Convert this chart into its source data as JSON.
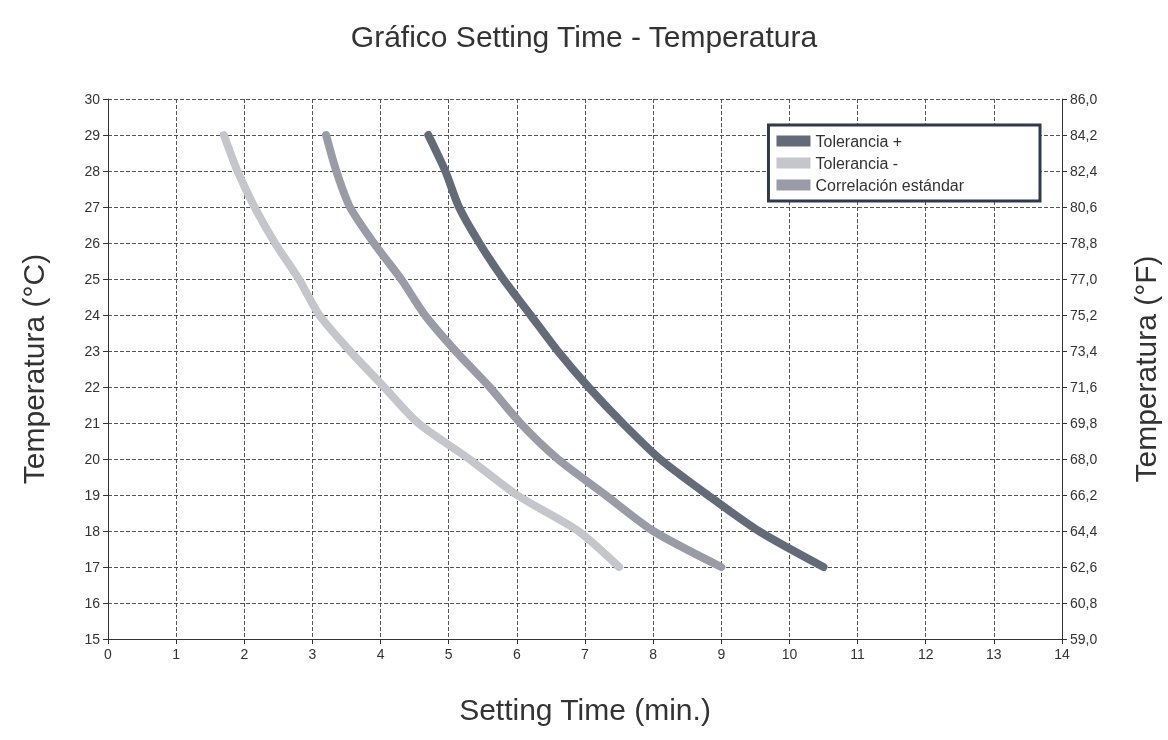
{
  "chart_data": {
    "type": "line",
    "title": "Gráfico Setting Time - Temperatura",
    "xlabel": "Setting Time (min.)",
    "ylabel": "Temperatura (°C)",
    "y2label": "Temperatura (°F)",
    "xlim": [
      0,
      14
    ],
    "xticks": [
      0,
      1,
      2,
      3,
      4,
      5,
      6,
      7,
      8,
      9,
      10,
      11,
      12,
      13,
      14
    ],
    "ylim": [
      15,
      30
    ],
    "yticks": [
      15,
      16,
      17,
      18,
      19,
      20,
      21,
      22,
      23,
      24,
      25,
      26,
      27,
      28,
      29,
      30
    ],
    "y2lim": [
      59,
      86
    ],
    "y2ticks": [
      {
        "value": 59,
        "label": "59,0"
      },
      {
        "value": 60.8,
        "label": "60,8"
      },
      {
        "value": 62.6,
        "label": "62,6"
      },
      {
        "value": 64.4,
        "label": "64,4"
      },
      {
        "value": 66.2,
        "label": "66,2"
      },
      {
        "value": 68,
        "label": "68,0"
      },
      {
        "value": 69.8,
        "label": "69,8"
      },
      {
        "value": 71.6,
        "label": "71,6"
      },
      {
        "value": 73.4,
        "label": "73,4"
      },
      {
        "value": 75.2,
        "label": "75,2"
      },
      {
        "value": 77,
        "label": "77,0"
      },
      {
        "value": 78.8,
        "label": "78,8"
      },
      {
        "value": 80.6,
        "label": "80,6"
      },
      {
        "value": 82.4,
        "label": "82,4"
      },
      {
        "value": 84.2,
        "label": "84,2"
      },
      {
        "value": 86,
        "label": "86,0"
      }
    ],
    "grid": true,
    "legend": "top right",
    "line_style": "solid",
    "series": [
      {
        "name": "Tolerancia +",
        "color": "#646b78",
        "x": [
          4.7,
          4.95,
          5.15,
          5.45,
          5.8,
          6.2,
          6.6,
          7.05,
          7.55,
          8.1,
          8.8,
          9.55,
          10.5
        ],
        "values": [
          29,
          28,
          27,
          26,
          25,
          24,
          23,
          22,
          21,
          20,
          19,
          18,
          17
        ]
      },
      {
        "name": "Tolerancia -",
        "color": "#c4c6cc",
        "x": [
          1.7,
          1.9,
          2.15,
          2.45,
          2.8,
          3.1,
          3.55,
          4.05,
          4.55,
          5.3,
          6.0,
          6.9,
          7.5
        ],
        "values": [
          29,
          28,
          27,
          26,
          25,
          24,
          23,
          22,
          21,
          20,
          19,
          18,
          17
        ]
      },
      {
        "name": "Correlación estándar",
        "color": "#999ca6",
        "x": [
          3.2,
          3.35,
          3.55,
          3.9,
          4.3,
          4.65,
          5.1,
          5.6,
          6.05,
          6.6,
          7.3,
          8.0,
          9.0
        ],
        "values": [
          29,
          28,
          27,
          26,
          25,
          24,
          23,
          22,
          21,
          20,
          19,
          18,
          17
        ]
      }
    ]
  }
}
